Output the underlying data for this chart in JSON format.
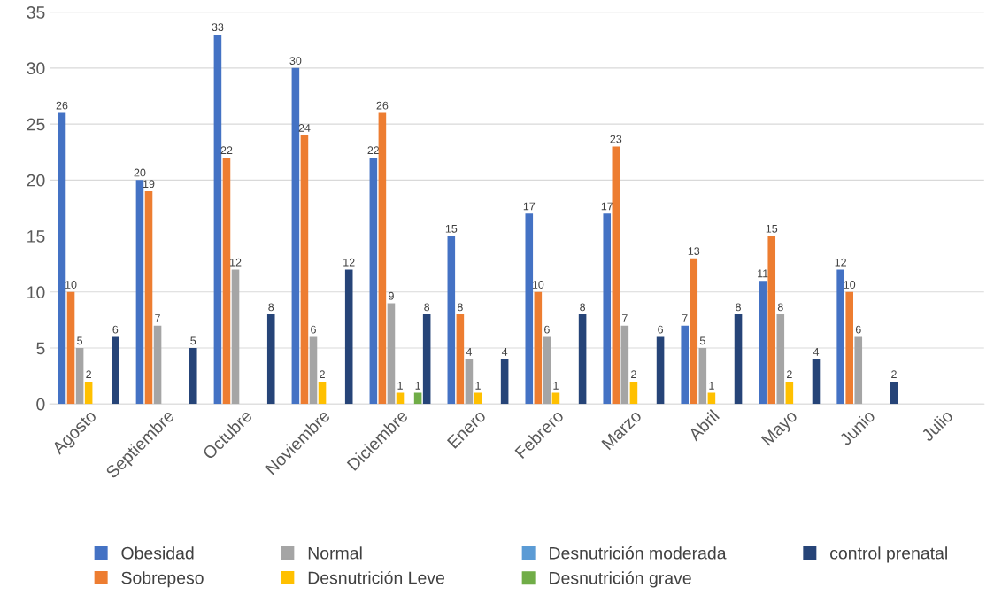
{
  "chart_data": {
    "type": "bar",
    "categories": [
      "Agosto",
      "Septiembre",
      "Octubre",
      "Noviembre",
      "Diciembre",
      "Enero",
      "Febrero",
      "Marzo",
      "Abril",
      "Mayo",
      "Junio",
      "Julio"
    ],
    "series": [
      {
        "name": "Obesidad",
        "color": "#4472c4",
        "values": [
          26,
          20,
          33,
          30,
          22,
          15,
          17,
          17,
          7,
          11,
          12,
          null
        ]
      },
      {
        "name": "Sobrepeso",
        "color": "#ed7d31",
        "values": [
          10,
          19,
          22,
          24,
          26,
          8,
          10,
          23,
          13,
          15,
          10,
          null
        ]
      },
      {
        "name": "Normal",
        "color": "#a5a5a5",
        "values": [
          5,
          7,
          12,
          6,
          9,
          4,
          6,
          7,
          5,
          8,
          6,
          null
        ]
      },
      {
        "name": "Desnutrición Leve",
        "color": "#ffc000",
        "values": [
          2,
          null,
          null,
          2,
          1,
          1,
          1,
          2,
          1,
          2,
          null,
          null
        ]
      },
      {
        "name": "Desnutrición moderada",
        "color": "#5b9bd5",
        "values": [
          null,
          null,
          null,
          null,
          null,
          null,
          null,
          null,
          null,
          null,
          null,
          null
        ]
      },
      {
        "name": "Desnutrición grave",
        "color": "#70ad47",
        "values": [
          null,
          null,
          null,
          null,
          1,
          null,
          null,
          null,
          null,
          null,
          null,
          null
        ]
      },
      {
        "name": "control prenatal",
        "color": "#264478",
        "values": [
          6,
          5,
          8,
          12,
          8,
          4,
          8,
          6,
          8,
          4,
          2,
          null
        ]
      }
    ],
    "ylim": [
      0,
      35
    ],
    "yticks": [
      0,
      5,
      10,
      15,
      20,
      25,
      30,
      35
    ],
    "grid": "y",
    "legend": "bottom",
    "data_labels": true
  }
}
